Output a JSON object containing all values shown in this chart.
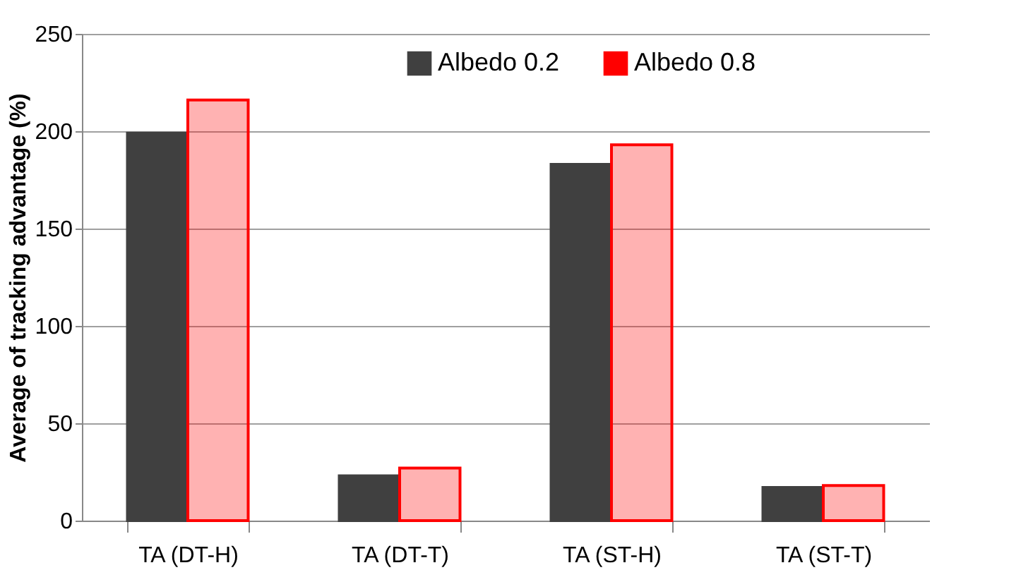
{
  "chart_data": {
    "type": "bar",
    "ylabel": "Average of tracking advantage (%)",
    "categories": [
      "TA (DT-H)",
      "TA (DT-T)",
      "TA (ST-H)",
      "TA (ST-T)"
    ],
    "series": [
      {
        "name": "Albedo 0.2",
        "color": "#404040",
        "values": [
          199,
          23,
          183,
          17
        ]
      },
      {
        "name": "Albedo 0.8",
        "color": "#ff0000",
        "values": [
          216,
          27,
          193,
          18
        ]
      }
    ],
    "ylim": [
      0,
      250
    ],
    "yticks": [
      0,
      50,
      100,
      150,
      200,
      250
    ],
    "grid": "y",
    "legend": "top"
  }
}
